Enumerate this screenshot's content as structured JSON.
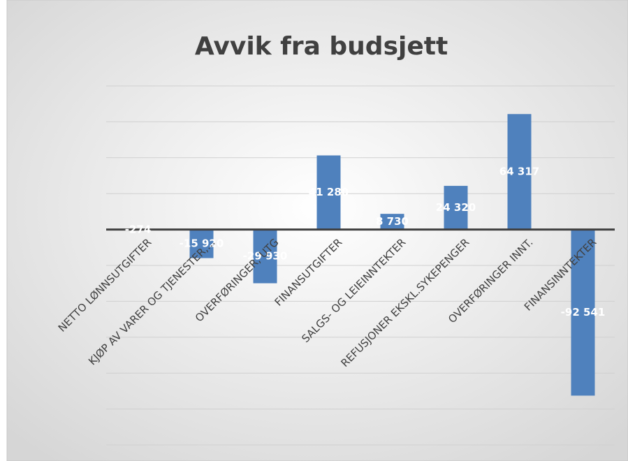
{
  "chart_data": {
    "type": "bar",
    "title": "Avvik fra budsjett",
    "categories": [
      "NETTO LØNNSUTGIFTER",
      "KJØP AV VARER OG TJENESTER,...",
      "OVERFØRINGER, UTG",
      "FINANSUTGIFTER",
      "SALGS- OG LEIEINNTEKTER",
      "REFUSJONER EKSKL.SYKEPENGER",
      "OVERFØRINGER INNT.",
      "FINANSINNTEKTER"
    ],
    "values": [
      -274,
      -15920,
      -29930,
      41280,
      8730,
      24320,
      64317,
      -92541
    ],
    "value_labels": [
      "-274",
      "-15 920",
      "-29 930",
      "41 280",
      "8 730",
      "24 320",
      "64 317",
      "-92 541"
    ],
    "color": "#4f81bd",
    "ylim": [
      -120000,
      80000
    ],
    "yticks": [
      -120000,
      -100000,
      -80000,
      -60000,
      -40000,
      -20000,
      0,
      20000,
      40000,
      60000,
      80000
    ],
    "grid": true
  }
}
